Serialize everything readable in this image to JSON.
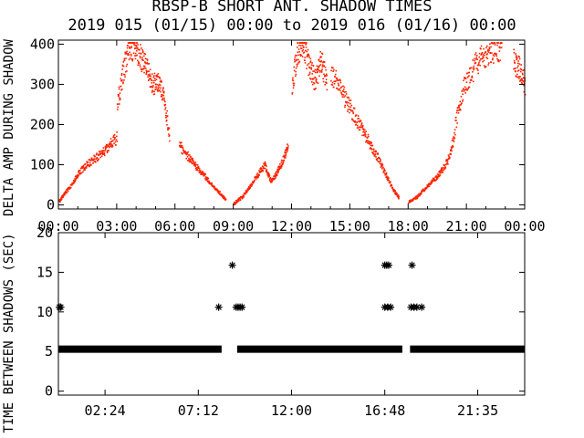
{
  "title_line1": "RBSP-B SHORT ANT. SHADOW TIMES",
  "title_line2": "2019 015 (01/15) 00:00 to 2019 016 (01/16) 00:00",
  "colors": {
    "amp_points": "#ff2200",
    "axes": "#000000",
    "markers": "#000000",
    "background": "#ffffff"
  },
  "chart_data": [
    {
      "type": "scatter",
      "title": "RBSP-B SHORT ANT. SHADOW TIMES",
      "subtitle": "2019 015 (01/15) 00:00 to 2019 016 (01/16) 00:00",
      "xlabel": "",
      "ylabel": "DELTA AMP DURING SHADOW",
      "x_unit": "hours since 2019-01-15 00:00",
      "xlim": [
        0,
        24
      ],
      "ylim": [
        -10,
        410
      ],
      "x_tick_labels": [
        "00:00",
        "03:00",
        "06:00",
        "09:00",
        "12:00",
        "15:00",
        "18:00",
        "21:00",
        "00:00"
      ],
      "x_tick_values": [
        0,
        3,
        6,
        9,
        12,
        15,
        18,
        21,
        24
      ],
      "y_ticks": [
        0,
        100,
        200,
        300,
        400
      ],
      "marker": "dot",
      "color": "#ff2200",
      "segments": [
        {
          "x": [
            0.0,
            0.3,
            0.7,
            1.0,
            1.4,
            1.8,
            2.2,
            2.6,
            3.0
          ],
          "y": [
            10,
            30,
            55,
            80,
            100,
            115,
            130,
            150,
            170
          ]
        },
        {
          "x": [
            3.0,
            3.3,
            3.6,
            3.9,
            4.2,
            4.5,
            4.8,
            5.1,
            5.4,
            5.7
          ],
          "y": [
            250,
            330,
            390,
            400,
            370,
            350,
            300,
            310,
            270,
            170
          ]
        },
        {
          "x": [
            6.2,
            6.6,
            7.0,
            7.4,
            7.8,
            8.2,
            8.6
          ],
          "y": [
            150,
            125,
            100,
            80,
            55,
            35,
            15
          ]
        },
        {
          "x": [
            9.0,
            9.4,
            9.8,
            10.2,
            10.6,
            10.9,
            11.2,
            11.5,
            11.8
          ],
          "y": [
            5,
            20,
            45,
            75,
            100,
            60,
            80,
            110,
            150
          ]
        },
        {
          "x": [
            12.0,
            12.3,
            12.6,
            12.9,
            13.2,
            13.5,
            13.8
          ],
          "y": [
            300,
            390,
            400,
            340,
            310,
            360,
            300
          ]
        },
        {
          "x": [
            14.0,
            14.4,
            14.8,
            15.2,
            15.6,
            16.0,
            16.4,
            16.8,
            17.2,
            17.5
          ],
          "y": [
            330,
            300,
            260,
            225,
            190,
            155,
            120,
            80,
            40,
            20
          ]
        },
        {
          "x": [
            18.0,
            18.4,
            18.8,
            19.2,
            19.6,
            20.0,
            20.4
          ],
          "y": [
            10,
            20,
            40,
            60,
            80,
            110,
            180
          ]
        },
        {
          "x": [
            20.4,
            20.8,
            21.2,
            21.6,
            22.0,
            22.4,
            22.8
          ],
          "y": [
            200,
            290,
            330,
            360,
            380,
            390,
            395
          ]
        },
        {
          "x": [
            23.4,
            23.7,
            24.0
          ],
          "y": [
            360,
            340,
            300
          ]
        }
      ]
    },
    {
      "type": "scatter",
      "title": "",
      "xlabel": "",
      "ylabel": "TIME BETWEEN SHADOWS (SEC)",
      "x_unit": "hours since 2019-01-15 00:00",
      "xlim": [
        0,
        24
      ],
      "ylim": [
        -0.5,
        20
      ],
      "x_tick_labels": [
        "02:24",
        "07:12",
        "12:00",
        "16:48",
        "21:35"
      ],
      "x_tick_values": [
        2.4,
        7.2,
        12.0,
        16.8,
        21.583
      ],
      "y_ticks": [
        0,
        5,
        10,
        15,
        20
      ],
      "marker": "asterisk",
      "color": "#000000",
      "band_y": 5.3,
      "band_ranges": [
        [
          0.0,
          8.4
        ],
        [
          9.2,
          17.7
        ],
        [
          18.1,
          24.0
        ]
      ],
      "points": [
        {
          "x": 0.05,
          "y": 10.6
        },
        {
          "x": 0.12,
          "y": 10.6
        },
        {
          "x": 8.25,
          "y": 10.6
        },
        {
          "x": 8.95,
          "y": 15.9
        },
        {
          "x": 9.15,
          "y": 10.6
        },
        {
          "x": 9.25,
          "y": 10.6
        },
        {
          "x": 9.35,
          "y": 10.6
        },
        {
          "x": 9.45,
          "y": 10.6
        },
        {
          "x": 16.8,
          "y": 15.9
        },
        {
          "x": 16.9,
          "y": 15.9
        },
        {
          "x": 17.0,
          "y": 15.9
        },
        {
          "x": 16.8,
          "y": 10.6
        },
        {
          "x": 16.95,
          "y": 10.6
        },
        {
          "x": 17.1,
          "y": 10.6
        },
        {
          "x": 18.2,
          "y": 15.9
        },
        {
          "x": 18.15,
          "y": 10.6
        },
        {
          "x": 18.3,
          "y": 10.6
        },
        {
          "x": 18.45,
          "y": 10.6
        },
        {
          "x": 18.7,
          "y": 10.6
        }
      ]
    }
  ]
}
